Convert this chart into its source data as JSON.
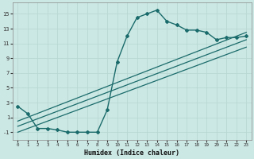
{
  "xlabel": "Humidex (Indice chaleur)",
  "ylabel": "",
  "background_color": "#cce8e4",
  "grid_color": "#b8d8d4",
  "line_color": "#1a6b6b",
  "xlim": [
    -0.5,
    23.5
  ],
  "ylim": [
    -2.0,
    16.5
  ],
  "xticks": [
    0,
    1,
    2,
    3,
    4,
    5,
    6,
    7,
    8,
    9,
    10,
    11,
    12,
    13,
    14,
    15,
    16,
    17,
    18,
    19,
    20,
    21,
    22,
    23
  ],
  "yticks": [
    -1,
    1,
    3,
    5,
    7,
    9,
    11,
    13,
    15
  ],
  "curve1_x": [
    0,
    1,
    2,
    3,
    4,
    5,
    6,
    7,
    8,
    9,
    10,
    11,
    12,
    13,
    14,
    15,
    16,
    17,
    18,
    19,
    20,
    21,
    22,
    23
  ],
  "curve1_y": [
    2.5,
    1.5,
    -0.5,
    -0.5,
    -0.7,
    -1.0,
    -1.0,
    -1.0,
    -1.0,
    2.0,
    8.5,
    12.0,
    14.5,
    15.0,
    15.5,
    14.0,
    13.5,
    12.8,
    12.8,
    12.5,
    11.5,
    11.8,
    11.8,
    12.0
  ],
  "curve2_x": [
    0,
    23
  ],
  "curve2_y": [
    0.5,
    12.5
  ],
  "curve3_x": [
    0,
    23
  ],
  "curve3_y": [
    -0.2,
    11.5
  ],
  "curve4_x": [
    0,
    23
  ],
  "curve4_y": [
    -1.0,
    10.5
  ]
}
